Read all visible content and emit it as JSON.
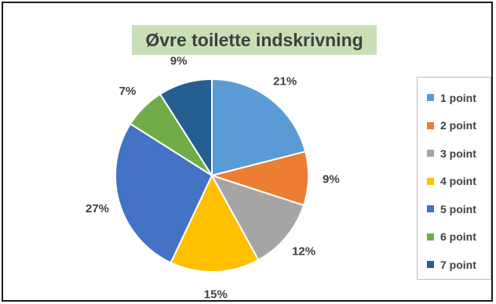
{
  "chart_data": {
    "type": "pie",
    "title": "Øvre toilette indskrivning",
    "categories": [
      "1 point",
      "2 point",
      "3 point",
      "4 point",
      "5 point",
      "6 point",
      "7 point"
    ],
    "values": [
      21,
      9,
      12,
      15,
      27,
      7,
      9
    ],
    "data_labels": [
      "21%",
      "9%",
      "12%",
      "15%",
      "27%",
      "7%",
      "9%"
    ],
    "colors": [
      "#5b9bd5",
      "#ed7d31",
      "#a5a5a5",
      "#ffc000",
      "#4472c4",
      "#70ad47",
      "#255e91"
    ],
    "legend_position": "right",
    "start_angle_deg": 0,
    "direction": "clockwise"
  }
}
